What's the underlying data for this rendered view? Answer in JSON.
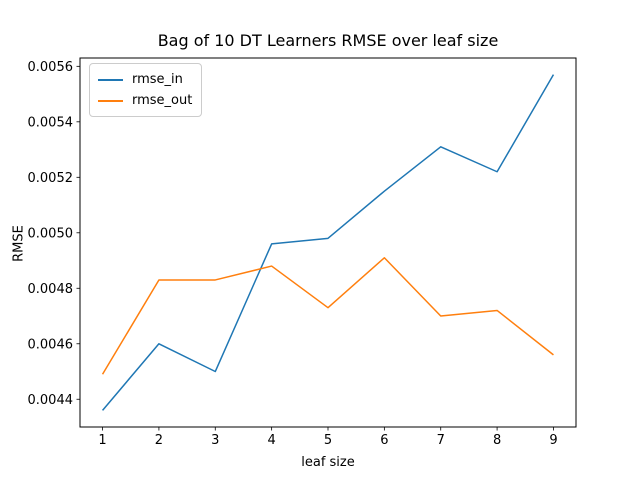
{
  "figure": {
    "title": "Bag of 10 DT Learners RMSE over leaf size"
  },
  "chart_data": {
    "type": "line",
    "title": "Bag of 10 DT Learners RMSE over leaf size",
    "xlabel": "leaf size",
    "ylabel": "RMSE",
    "x": [
      1,
      2,
      3,
      4,
      5,
      6,
      7,
      8,
      9
    ],
    "series": [
      {
        "name": "rmse_in",
        "color": "#1f77b4",
        "values": [
          0.00436,
          0.0046,
          0.0045,
          0.00496,
          0.00498,
          0.00515,
          0.00531,
          0.00522,
          0.00557
        ]
      },
      {
        "name": "rmse_out",
        "color": "#ff7f0e",
        "values": [
          0.00449,
          0.00483,
          0.00483,
          0.00488,
          0.00473,
          0.00491,
          0.0047,
          0.00472,
          0.00456
        ]
      }
    ],
    "xticks": [
      1,
      2,
      3,
      4,
      5,
      6,
      7,
      8,
      9
    ],
    "yticks": [
      0.0044,
      0.0046,
      0.0048,
      0.005,
      0.0052,
      0.0054,
      0.0056
    ],
    "xlim": [
      0.6,
      9.4
    ],
    "ylim": [
      0.0043,
      0.00563
    ],
    "grid": false,
    "legend_position": "upper left",
    "line_width": 1.5,
    "axis_color": "#000000",
    "background": "#ffffff"
  }
}
